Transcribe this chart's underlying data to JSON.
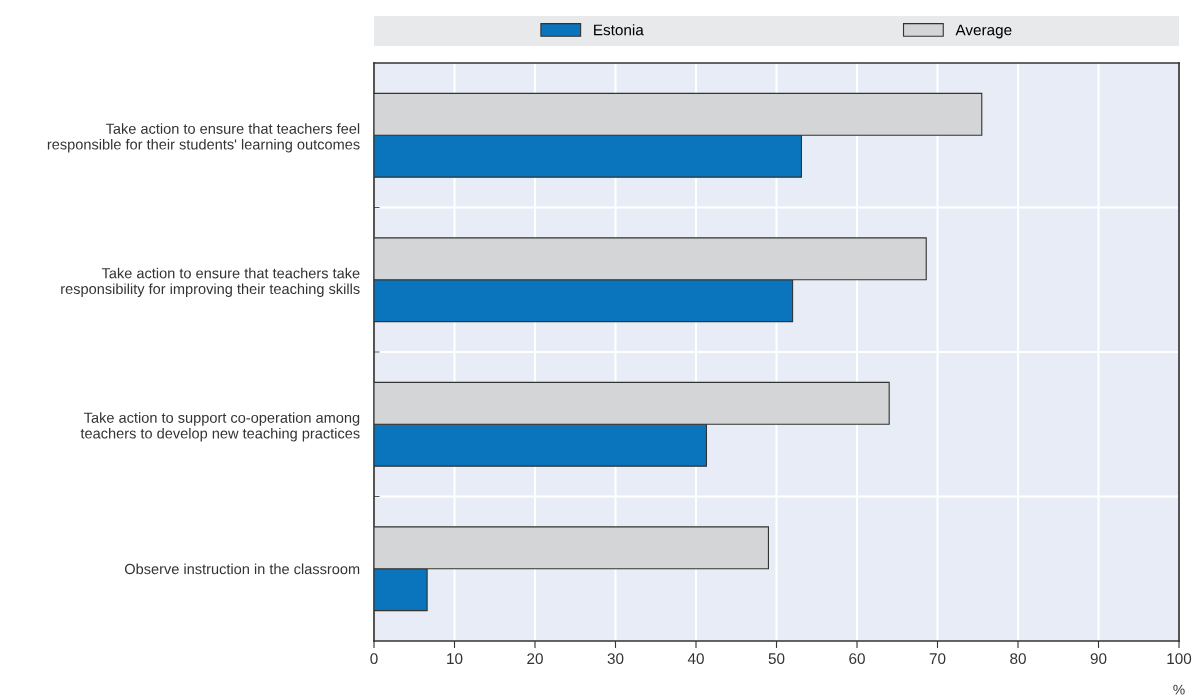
{
  "chart_data": {
    "type": "bar",
    "orientation": "horizontal",
    "categories": [
      "Take action to ensure that teachers feel\nresponsible for their students' learning outcomes",
      "Take action to ensure that teachers take\nresponsibility for improving their teaching skills",
      "Take action to support co-operation among\nteachers to develop new teaching practices",
      "Observe instruction in the classroom"
    ],
    "series": [
      {
        "name": "Estonia",
        "color": "#0a75bc",
        "values": [
          53.1,
          52.0,
          41.3,
          6.6
        ]
      },
      {
        "name": "Average",
        "color": "#d4d5d7",
        "values": [
          75.5,
          68.6,
          64.0,
          49.0
        ]
      }
    ],
    "xlabel": "%",
    "xlim": [
      0,
      100
    ],
    "xticks": [
      0,
      10,
      20,
      30,
      40,
      50,
      60,
      70,
      80,
      90,
      100
    ],
    "grid": true,
    "legend": "top"
  }
}
